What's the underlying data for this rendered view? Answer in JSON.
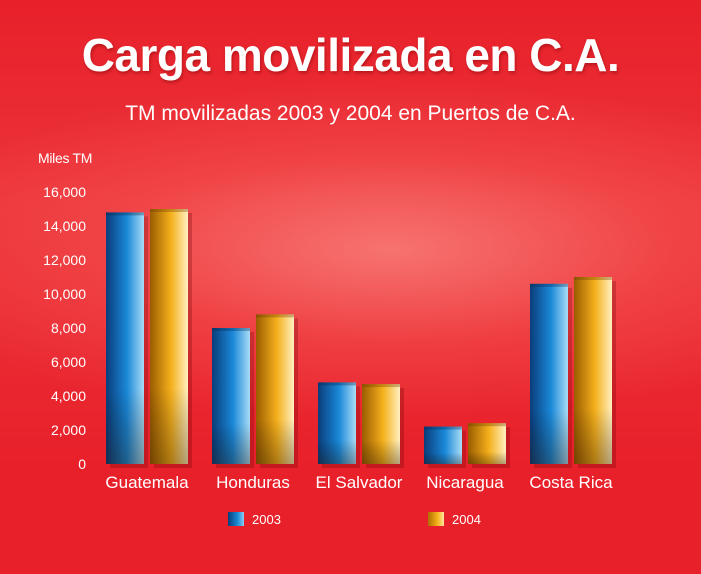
{
  "title": "Carga movilizada en C.A.",
  "subtitle": "TM movilizadas 2003 y 2004 en Puertos de C.A.",
  "chart_data": {
    "type": "bar",
    "unit_label": "Miles TM",
    "categories": [
      "Guatemala",
      "Honduras",
      "El Salvador",
      "Nicaragua",
      "Costa Rica"
    ],
    "series": [
      {
        "name": "2003",
        "values": [
          14800,
          8000,
          4800,
          2200,
          10600
        ],
        "color": "#1a7fd0"
      },
      {
        "name": "2004",
        "values": [
          15000,
          8800,
          4700,
          2400,
          11000
        ],
        "color": "#f2a91c"
      }
    ],
    "y_ticks": [
      "0",
      "2,000",
      "4,000",
      "6,000",
      "8,000",
      "10,000",
      "12,000",
      "14,000",
      "16,000"
    ],
    "ylim": [
      0,
      16000
    ],
    "grid": false,
    "legend_position": "bottom"
  },
  "colors": {
    "background": "#e8202a",
    "text": "#ffffff"
  }
}
